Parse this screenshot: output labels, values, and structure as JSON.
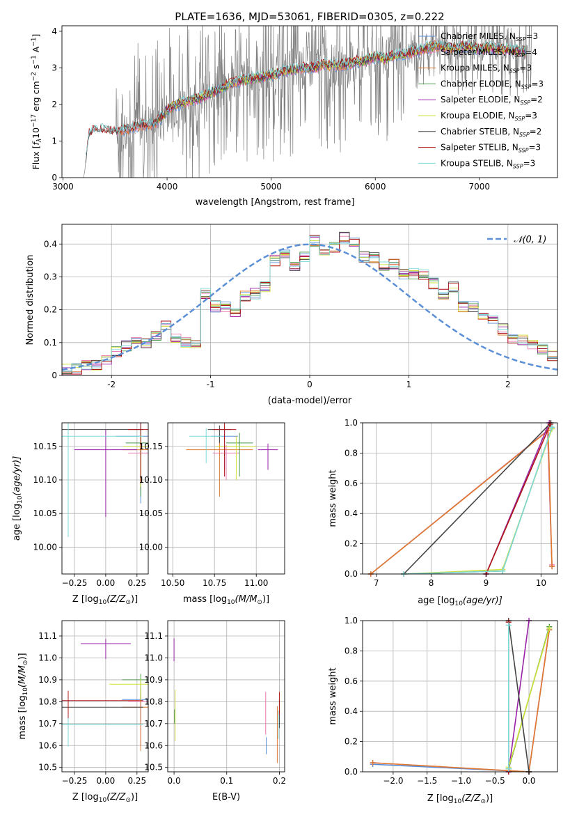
{
  "figure": {
    "title": "PLATE=1636, MJD=53061, FIBERID=0305, z=0.222"
  },
  "colors": {
    "Chabrier MILES": "#5b8fd6",
    "Salpeter MILES": "#e87ab0",
    "Kroupa MILES": "#e07a2e",
    "Chabrier ELODIE": "#4a9a4a",
    "Salpeter ELODIE": "#9a22a8",
    "Kroupa ELODIE": "#cfe03a",
    "Chabrier STELIB": "#444444",
    "Salpeter STELIB": "#b01818",
    "Kroupa STELIB": "#7fd8d8",
    "data": "#808080",
    "gauss": "#5b8fd6"
  },
  "chart_data": [
    {
      "id": "spectrum",
      "type": "line",
      "xlabel": "wavelength [Angstrom, rest frame]",
      "ylabel_main": "Flux [",
      "ylabel_f": "f",
      "ylabel_sub": "λ",
      "ylabel_rest": "10",
      "ylabel_exp": "−17",
      "ylabel_units": " erg cm",
      "ylabel_cm_exp": "−2",
      "ylabel_s": " s",
      "ylabel_s_exp": "−1",
      "ylabel_A": " A",
      "ylabel_A_exp": "−1",
      "ylabel_end": "]",
      "xlim": [
        2990,
        7750
      ],
      "ylim": [
        0,
        4.15
      ],
      "xticks": [
        3000,
        4000,
        5000,
        6000,
        7000
      ],
      "yticks": [
        0,
        1,
        2,
        3,
        4
      ],
      "legend": [
        {
          "name": "Chabrier MILES",
          "nssp": "3"
        },
        {
          "name": "Salpeter MILES",
          "nssp": "4"
        },
        {
          "name": "Kroupa MILES",
          "nssp": "3"
        },
        {
          "name": "Chabrier ELODIE",
          "nssp": "3"
        },
        {
          "name": "Salpeter ELODIE",
          "nssp": "2"
        },
        {
          "name": "Kroupa ELODIE",
          "nssp": "3"
        },
        {
          "name": "Chabrier STELIB",
          "nssp": "2"
        },
        {
          "name": "Salpeter STELIB",
          "nssp": "3"
        },
        {
          "name": "Kroupa STELIB",
          "nssp": "3"
        }
      ],
      "model_curve": {
        "x": [
          3200,
          3250,
          3300,
          3400,
          3500,
          3600,
          3700,
          3800,
          3900,
          4000,
          4100,
          4200,
          4300,
          4400,
          4500,
          4600,
          4700,
          4800,
          4900,
          5000,
          5100,
          5200,
          5300,
          5400,
          5500,
          5600,
          5700,
          5800,
          5900,
          6000,
          6100,
          6200,
          6300,
          6400,
          6500,
          6600,
          6700,
          6800,
          6900,
          7000,
          7100,
          7200,
          7300,
          7400
        ],
        "y": [
          0.0,
          1.2,
          1.3,
          1.3,
          1.25,
          1.3,
          1.4,
          1.45,
          1.5,
          1.85,
          2.0,
          2.1,
          2.15,
          2.3,
          2.4,
          2.55,
          2.65,
          2.7,
          2.75,
          2.8,
          2.9,
          2.95,
          3.0,
          3.0,
          3.1,
          3.05,
          3.1,
          3.15,
          3.2,
          3.3,
          3.25,
          3.35,
          3.4,
          3.45,
          3.55,
          3.6,
          3.55,
          3.55,
          3.6,
          3.5,
          3.55,
          3.5,
          3.5,
          3.45
        ]
      }
    },
    {
      "id": "normed",
      "type": "bar",
      "xlabel": "(data-model)/error",
      "ylabel": "Normed distribution",
      "legend": "𝒩(0, 1)",
      "xlim": [
        -2.5,
        2.5
      ],
      "ylim": [
        0,
        0.46
      ],
      "xticks": [
        -2,
        -1,
        0,
        1,
        2
      ],
      "yticks": [
        0.0,
        0.1,
        0.2,
        0.3,
        0.4
      ],
      "bin_width": 0.1,
      "bin_start": -2.5,
      "values": [
        0.02,
        0.02,
        0.03,
        0.03,
        0.05,
        0.07,
        0.09,
        0.1,
        0.1,
        0.12,
        0.15,
        0.11,
        0.1,
        0.1,
        0.25,
        0.21,
        0.21,
        0.19,
        0.24,
        0.25,
        0.27,
        0.35,
        0.37,
        0.33,
        0.36,
        0.41,
        0.38,
        0.39,
        0.42,
        0.41,
        0.36,
        0.36,
        0.33,
        0.34,
        0.31,
        0.31,
        0.31,
        0.28,
        0.25,
        0.27,
        0.21,
        0.21,
        0.18,
        0.17,
        0.14,
        0.11,
        0.11,
        0.09,
        0.08,
        0.06,
        0.05
      ]
    },
    {
      "id": "age_Z",
      "type": "scatter",
      "xlabel_main": "Z [log",
      "xlabel_sub": "10",
      "xlabel_rest": "(Z/Z",
      "xlabel_sun": "⊙",
      "xlabel_end": ")]",
      "ylabel_main": "age  [log",
      "ylabel_sub": "10",
      "ylabel_rest": "(age/yr)]",
      "xlim": [
        -0.35,
        0.34
      ],
      "ylim": [
        9.96,
        10.185
      ],
      "xticks": [
        -0.25,
        0.0,
        0.25
      ],
      "xticklabels": [
        "−0.25",
        "0.00",
        "0.25"
      ],
      "yticks": [
        10.0,
        10.05,
        10.1,
        10.15
      ],
      "yticklabels": [
        "10.00",
        "10.05",
        "10.10",
        "10.15"
      ],
      "points": [
        {
          "series": "Chabrier MILES",
          "x": 0.28,
          "y": 10.165,
          "xe": 0.2,
          "ye": 0.1
        },
        {
          "series": "Salpeter MILES",
          "x": 0.28,
          "y": 10.14,
          "xe": 0.1,
          "ye": 0.05
        },
        {
          "series": "Kroupa MILES",
          "x": 0.28,
          "y": 10.145,
          "xe": 0.15,
          "ye": 0.06
        },
        {
          "series": "Chabrier ELODIE",
          "x": 0.28,
          "y": 10.155,
          "xe": 0.12,
          "ye": 0.08
        },
        {
          "series": "Salpeter ELODIE",
          "x": 0.0,
          "y": 10.145,
          "xe": 0.25,
          "ye": 0.1
        },
        {
          "series": "Kroupa ELODIE",
          "x": 0.28,
          "y": 10.15,
          "xe": 0.14,
          "ye": 0.06
        },
        {
          "series": "Chabrier STELIB",
          "x": -0.3,
          "y": 10.175,
          "xe": 0.6,
          "ye": 0.02
        },
        {
          "series": "Salpeter STELIB",
          "x": 0.28,
          "y": 10.175,
          "xe": 0.1,
          "ye": 0.08
        },
        {
          "series": "Kroupa STELIB",
          "x": -0.3,
          "y": 10.165,
          "xe": 0.6,
          "ye": 0.15
        }
      ]
    },
    {
      "id": "age_mass",
      "type": "scatter",
      "xlabel_main": "mass [log",
      "xlabel_sub": "10",
      "xlabel_rest": "(M/M",
      "xlabel_sun": "⊙",
      "xlabel_end": ")]",
      "xlim": [
        10.47,
        11.17
      ],
      "ylim": [
        9.96,
        10.185
      ],
      "xticks": [
        10.5,
        10.75,
        11.0
      ],
      "xticklabels": [
        "10.50",
        "10.75",
        "11.00"
      ],
      "yticks": [
        10.0,
        10.05,
        10.1,
        10.15
      ],
      "yticklabels": [
        "10.00",
        "10.05",
        "10.10",
        "10.15"
      ],
      "points": [
        {
          "series": "Chabrier MILES",
          "x": 10.81,
          "y": 10.165,
          "xe": 0.08,
          "ye": 0.05
        },
        {
          "series": "Salpeter MILES",
          "x": 10.82,
          "y": 10.14,
          "xe": 0.08,
          "ye": 0.04
        },
        {
          "series": "Kroupa MILES",
          "x": 10.78,
          "y": 10.145,
          "xe": 0.2,
          "ye": 0.07
        },
        {
          "series": "Chabrier ELODIE",
          "x": 10.9,
          "y": 10.155,
          "xe": 0.08,
          "ye": 0.05
        },
        {
          "series": "Salpeter ELODIE",
          "x": 11.07,
          "y": 10.145,
          "xe": 0.06,
          "ye": 0.03
        },
        {
          "series": "Kroupa ELODIE",
          "x": 10.88,
          "y": 10.15,
          "xe": 0.12,
          "ye": 0.05
        },
        {
          "series": "Chabrier STELIB",
          "x": 10.78,
          "y": 10.175,
          "xe": 0.07,
          "ye": 0.02
        },
        {
          "series": "Salpeter STELIB",
          "x": 10.81,
          "y": 10.175,
          "xe": 0.07,
          "ye": 0.07
        },
        {
          "series": "Kroupa STELIB",
          "x": 10.7,
          "y": 10.165,
          "xe": 0.1,
          "ye": 0.04
        }
      ]
    },
    {
      "id": "weight_age",
      "type": "line",
      "xlabel_main": "age  [log",
      "xlabel_sub": "10",
      "xlabel_rest": "(age/yr)]",
      "ylabel": "mass weight",
      "xlim": [
        6.75,
        10.3
      ],
      "ylim": [
        0,
        1.0
      ],
      "xticks": [
        7,
        8,
        9,
        10
      ],
      "yticks": [
        0.0,
        0.2,
        0.4,
        0.6,
        0.8,
        1.0
      ],
      "yticklabels": [
        "0.0",
        "0.2",
        "0.4",
        "0.6",
        "0.8",
        "1.0"
      ],
      "series": [
        {
          "name": "Chabrier MILES",
          "x": [
            6.9,
            10.12,
            10.2
          ],
          "y": [
            0.0,
            0.95,
            0.05
          ]
        },
        {
          "name": "Salpeter MILES",
          "x": [
            6.9,
            10.12,
            10.2
          ],
          "y": [
            0.0,
            0.95,
            0.06
          ]
        },
        {
          "name": "Kroupa MILES",
          "x": [
            6.9,
            10.13,
            10.2
          ],
          "y": [
            0.0,
            0.95,
            0.05
          ]
        },
        {
          "name": "Chabrier ELODIE",
          "x": [
            7.5,
            9.3,
            10.2
          ],
          "y": [
            0.0,
            0.02,
            0.97
          ]
        },
        {
          "name": "Salpeter ELODIE",
          "x": [
            9.0,
            10.15
          ],
          "y": [
            0.0,
            1.0
          ]
        },
        {
          "name": "Kroupa ELODIE",
          "x": [
            7.5,
            9.3,
            10.2
          ],
          "y": [
            0.0,
            0.03,
            0.96
          ]
        },
        {
          "name": "Chabrier STELIB",
          "x": [
            7.5,
            10.18
          ],
          "y": [
            0.0,
            1.0
          ]
        },
        {
          "name": "Salpeter STELIB",
          "x": [
            9.0,
            10.17
          ],
          "y": [
            0.0,
            0.99
          ]
        },
        {
          "name": "Kroupa STELIB",
          "x": [
            7.5,
            9.3,
            10.2
          ],
          "y": [
            0.0,
            0.02,
            0.97
          ]
        }
      ]
    },
    {
      "id": "mass_Z",
      "type": "scatter",
      "xlabel_main": "Z [log",
      "xlabel_sub": "10",
      "xlabel_rest": "(Z/Z",
      "xlabel_sun": "⊙",
      "xlabel_end": ")]",
      "ylabel_main": "mass [log",
      "ylabel_sub": "10",
      "ylabel_rest": "(M/M",
      "ylabel_sun": "⊙",
      "ylabel_end": ")]",
      "xlim": [
        -0.35,
        0.34
      ],
      "ylim": [
        10.48,
        11.17
      ],
      "xticks": [
        -0.25,
        0.0,
        0.25
      ],
      "xticklabels": [
        "−0.25",
        "0.00",
        "0.25"
      ],
      "yticks": [
        10.5,
        10.6,
        10.7,
        10.8,
        10.9,
        11.0,
        11.1
      ],
      "yticklabels": [
        "10.5",
        "10.6",
        "10.7",
        "10.8",
        "10.9",
        "11.0",
        "11.1"
      ],
      "points": [
        {
          "series": "Chabrier MILES",
          "x": 0.28,
          "y": 10.81,
          "xe": 0.15,
          "ye": 0.1
        },
        {
          "series": "Salpeter MILES",
          "x": 0.28,
          "y": 10.8,
          "xe": 0.1,
          "ye": 0.2
        },
        {
          "series": "Kroupa MILES",
          "x": 0.28,
          "y": 10.775,
          "xe": 0.15,
          "ye": 0.2
        },
        {
          "series": "Chabrier ELODIE",
          "x": 0.28,
          "y": 10.9,
          "xe": 0.15,
          "ye": 0.09
        },
        {
          "series": "Salpeter ELODIE",
          "x": 0.0,
          "y": 11.065,
          "xe": 0.2,
          "ye": 0.07
        },
        {
          "series": "Kroupa ELODIE",
          "x": 0.28,
          "y": 10.88,
          "xe": 0.25,
          "ye": 0.08
        },
        {
          "series": "Chabrier STELIB",
          "x": -0.3,
          "y": 10.775,
          "xe": 0.6,
          "ye": 0.05
        },
        {
          "series": "Salpeter STELIB",
          "x": -0.3,
          "y": 10.805,
          "xe": 0.6,
          "ye": 0.15
        },
        {
          "series": "Kroupa STELIB",
          "x": -0.3,
          "y": 10.695,
          "xe": 0.6,
          "ye": 0.1
        }
      ]
    },
    {
      "id": "mass_ebv",
      "type": "scatter",
      "xlabel": "E(B-V)",
      "xlim": [
        -0.012,
        0.21
      ],
      "ylim": [
        10.48,
        11.17
      ],
      "xticks": [
        0.0,
        0.1,
        0.2
      ],
      "xticklabels": [
        "0.0",
        "0.1",
        "0.2"
      ],
      "yticks": [
        10.5,
        10.6,
        10.7,
        10.8,
        10.9,
        11.0,
        11.1
      ],
      "yticklabels": [
        "10.5",
        "10.6",
        "10.7",
        "10.8",
        "10.9",
        "11.0",
        "11.1"
      ],
      "points": [
        {
          "series": "Chabrier MILES",
          "x": 0.175,
          "y": 10.62,
          "ye": 0.06
        },
        {
          "series": "Salpeter MILES",
          "x": 0.174,
          "y": 10.8,
          "ye": 0.15
        },
        {
          "series": "Kroupa MILES",
          "x": 0.196,
          "y": 10.72,
          "ye": 0.2
        },
        {
          "series": "Chabrier ELODIE",
          "x": 0.001,
          "y": 10.75,
          "ye": 0.05
        },
        {
          "series": "Salpeter ELODIE",
          "x": 0.0,
          "y": 11.065,
          "ye": 0.08
        },
        {
          "series": "Kroupa ELODIE",
          "x": 0.002,
          "y": 10.8,
          "ye": 0.18
        },
        {
          "series": "Chabrier STELIB",
          "x": 0.2,
          "y": 10.78,
          "ye": 0.1
        },
        {
          "series": "Salpeter STELIB",
          "x": 0.2,
          "y": 10.82,
          "ye": 0.08
        },
        {
          "series": "Kroupa STELIB",
          "x": 0.198,
          "y": 10.73,
          "ye": 0.1
        }
      ]
    },
    {
      "id": "weight_Z",
      "type": "line",
      "xlabel_main": "Z [log",
      "xlabel_sub": "10",
      "xlabel_rest": "(Z/Z",
      "xlabel_sun": "⊙",
      "xlabel_end": ")]",
      "ylabel": "mass weight",
      "xlim": [
        -2.45,
        0.42
      ],
      "ylim": [
        0,
        1.0
      ],
      "xticks": [
        -2.0,
        -1.5,
        -1.0,
        -0.5,
        0.0
      ],
      "xticklabels": [
        "−2.0",
        "−1.5",
        "−1.0",
        "−0.5",
        "0.0"
      ],
      "yticks": [
        0.0,
        0.2,
        0.4,
        0.6,
        0.8,
        1.0
      ],
      "yticklabels": [
        "0.0",
        "0.2",
        "0.4",
        "0.6",
        "0.8",
        "1.0"
      ],
      "series": [
        {
          "name": "Chabrier MILES",
          "x": [
            -2.3,
            0.0,
            0.3
          ],
          "y": [
            0.05,
            0.0,
            0.94
          ]
        },
        {
          "name": "Salpeter MILES",
          "x": [
            -2.3,
            0.0,
            0.3
          ],
          "y": [
            0.06,
            0.0,
            0.95
          ]
        },
        {
          "name": "Kroupa MILES",
          "x": [
            -2.3,
            0.0,
            0.3
          ],
          "y": [
            0.06,
            0.0,
            0.94
          ]
        },
        {
          "name": "Chabrier ELODIE",
          "x": [
            -0.3,
            0.3
          ],
          "y": [
            0.02,
            0.96
          ]
        },
        {
          "name": "Salpeter ELODIE",
          "x": [
            -0.3,
            0.0
          ],
          "y": [
            0.0,
            1.0
          ]
        },
        {
          "name": "Kroupa ELODIE",
          "x": [
            -0.3,
            0.3
          ],
          "y": [
            0.03,
            0.95
          ]
        },
        {
          "name": "Chabrier STELIB",
          "x": [
            -0.3,
            0.0
          ],
          "y": [
            1.0,
            0.0
          ]
        },
        {
          "name": "Salpeter STELIB",
          "x": [
            -0.3,
            -0.3
          ],
          "y": [
            0.0,
            0.99
          ]
        },
        {
          "name": "Kroupa STELIB",
          "x": [
            -0.3,
            -0.3
          ],
          "y": [
            0.02,
            0.97
          ]
        }
      ]
    }
  ]
}
